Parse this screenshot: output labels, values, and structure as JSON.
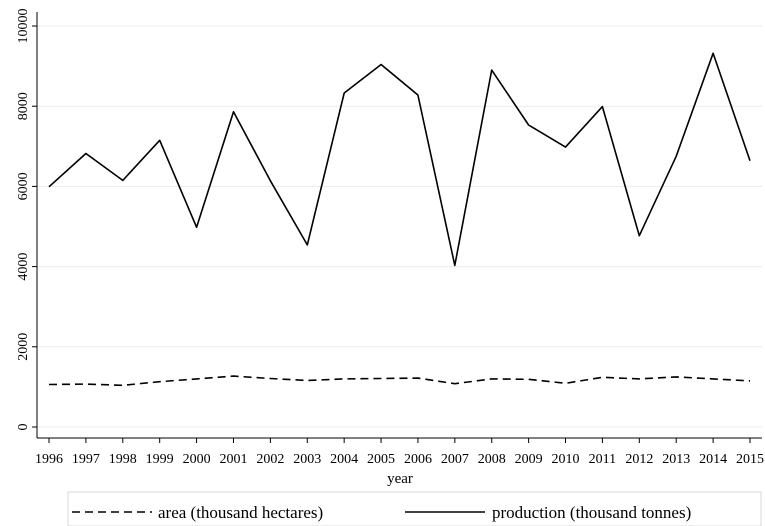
{
  "chart_data": {
    "type": "line",
    "title": "",
    "xlabel": "year",
    "ylabel": "",
    "x": [
      1996,
      1997,
      1998,
      1999,
      2000,
      2001,
      2002,
      2003,
      2004,
      2005,
      2006,
      2007,
      2008,
      2009,
      2010,
      2011,
      2012,
      2013,
      2014,
      2015
    ],
    "x_ticks": [
      "1996",
      "1997",
      "1998",
      "1999",
      "2000",
      "2001",
      "2002",
      "2003",
      "2004",
      "2005",
      "2006",
      "2007",
      "2008",
      "2009",
      "2010",
      "2011",
      "2012",
      "2013",
      "2014",
      "2015"
    ],
    "y_ticks": [
      "0",
      "2000",
      "4000",
      "6000",
      "8000",
      "10000"
    ],
    "ylim": [
      0,
      10000
    ],
    "grid": true,
    "legend_position": "bottom",
    "series": [
      {
        "name": "area (thousand hectares)",
        "style": "dashed",
        "color": "#000000",
        "values": [
          1060,
          1070,
          1040,
          1130,
          1200,
          1270,
          1210,
          1160,
          1200,
          1210,
          1220,
          1080,
          1200,
          1190,
          1090,
          1240,
          1200,
          1250,
          1200,
          1150
        ]
      },
      {
        "name": "production (thousand tonnes)",
        "style": "solid",
        "color": "#000000",
        "values": [
          5990,
          6820,
          6150,
          7150,
          4980,
          7860,
          6140,
          4540,
          8330,
          9040,
          8280,
          4030,
          8900,
          7530,
          6980,
          7990,
          4770,
          6750,
          9320,
          6640
        ]
      }
    ]
  }
}
